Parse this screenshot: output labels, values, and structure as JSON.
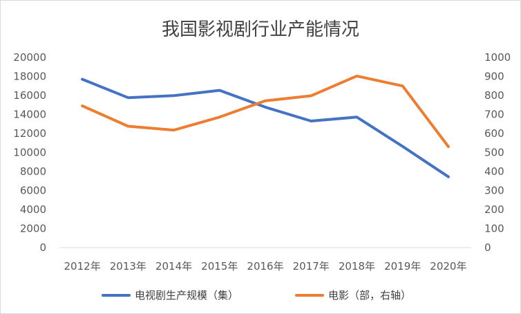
{
  "chart_data": {
    "type": "line",
    "title": "我国影视剧行业产能情况",
    "categories": [
      "2012年",
      "2013年",
      "2014年",
      "2015年",
      "2016年",
      "2017年",
      "2018年",
      "2019年",
      "2020年"
    ],
    "y_left": {
      "ylim": [
        0,
        20000
      ],
      "ticks": [
        "0",
        "2000",
        "4000",
        "6000",
        "8000",
        "10000",
        "12000",
        "14000",
        "16000",
        "18000",
        "20000"
      ]
    },
    "y_right": {
      "ylim": [
        0,
        1000
      ],
      "ticks": [
        "0",
        "100",
        "200",
        "300",
        "400",
        "500",
        "600",
        "700",
        "800",
        "900",
        "1000"
      ]
    },
    "series": [
      {
        "name": "电视剧生产规模（集）",
        "axis": "left",
        "color": "#4472c4",
        "values": [
          17700,
          15770,
          15980,
          16540,
          14770,
          13310,
          13720,
          10640,
          7450
        ]
      },
      {
        "name": "电影（部，右轴）",
        "axis": "right",
        "color": "#ed7d31",
        "values": [
          745,
          638,
          618,
          686,
          772,
          798,
          902,
          850,
          531
        ]
      }
    ],
    "grid": false,
    "legend_position": "bottom"
  }
}
